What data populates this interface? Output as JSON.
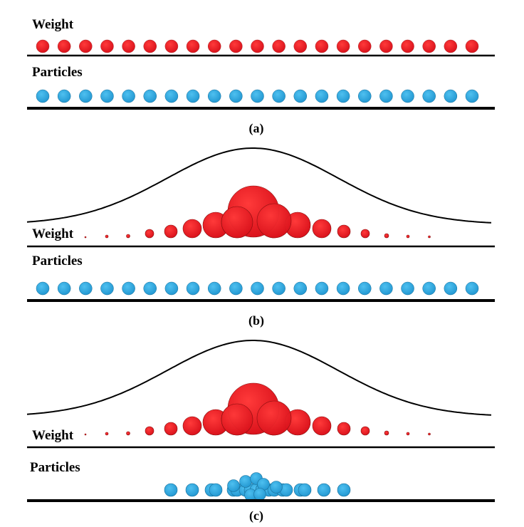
{
  "panels": [
    {
      "weight_label": "Weight",
      "particles_label": "Particles",
      "caption": "(a)"
    },
    {
      "weight_label": "Weight",
      "particles_label": "Particles",
      "caption": "(b)"
    },
    {
      "weight_label": "Weight",
      "particles_label": "Particles",
      "caption": "(c)"
    }
  ]
}
